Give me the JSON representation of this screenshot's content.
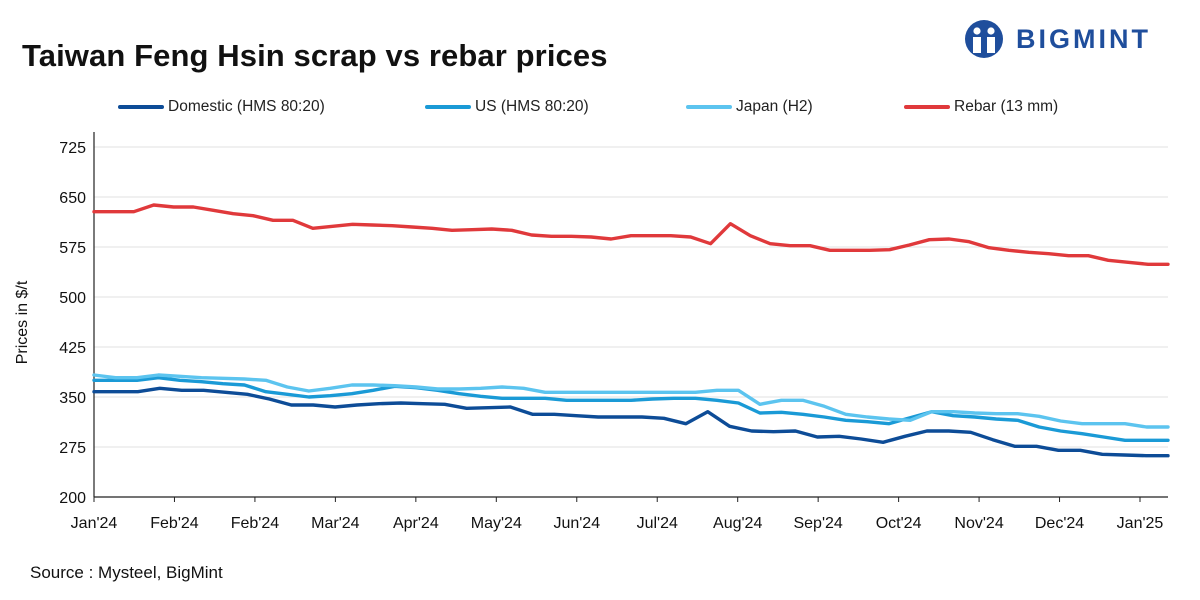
{
  "header": {
    "title": "Taiwan Feng Hsin scrap vs rebar prices",
    "logo_text": "BIGMINT",
    "logo_color": "#1f4e9c"
  },
  "legend": {
    "items": [
      {
        "label": "Domestic (HMS 80:20)",
        "color": "#0d4c97"
      },
      {
        "label": "US (HMS 80:20)",
        "color": "#1a9ad6"
      },
      {
        "label": "Japan (H2)",
        "color": "#5cc4ef"
      },
      {
        "label": "Rebar (13 mm)",
        "color": "#e0393b"
      }
    ]
  },
  "footer": {
    "source": "Source : Mysteel, BigMint"
  },
  "chart_data": {
    "type": "line",
    "title": "Taiwan Feng Hsin scrap vs rebar prices",
    "xlabel": "",
    "ylabel": "Prices in $/t",
    "ylim": [
      200,
      750
    ],
    "yticks": [
      200,
      275,
      350,
      425,
      500,
      575,
      650,
      725
    ],
    "x_tick_labels": [
      "Jan'24",
      "Feb'24",
      "Feb'24",
      "Mar'24",
      "Apr'24",
      "May'24",
      "Jun'24",
      "Jul'24",
      "Aug'24",
      "Sep'24",
      "Oct'24",
      "Nov'24",
      "Dec'24",
      "Jan'25"
    ],
    "grid": "horizontal",
    "legend_position": "top",
    "series": [
      {
        "name": "Domestic (HMS 80:20)",
        "color": "#0d4c97",
        "values": [
          358,
          358,
          358,
          363,
          360,
          360,
          357,
          354,
          347,
          338,
          338,
          335,
          338,
          340,
          341,
          340,
          339,
          333,
          334,
          335,
          324,
          324,
          322,
          320,
          320,
          320,
          318,
          310,
          328,
          306,
          299,
          298,
          299,
          290,
          291,
          287,
          282,
          291,
          299,
          299,
          297,
          286,
          276,
          276,
          270,
          270,
          264,
          263,
          262,
          262
        ]
      },
      {
        "name": "US (HMS 80:20)",
        "color": "#1a9ad6",
        "values": [
          375,
          375,
          375,
          379,
          375,
          373,
          370,
          368,
          358,
          354,
          350,
          352,
          355,
          360,
          366,
          364,
          360,
          355,
          351,
          348,
          348,
          348,
          345,
          345,
          345,
          345,
          347,
          348,
          348,
          345,
          341,
          326,
          327,
          324,
          320,
          315,
          313,
          310,
          319,
          328,
          322,
          320,
          317,
          315,
          305,
          299,
          295,
          290,
          285,
          285,
          285
        ]
      },
      {
        "name": "Japan (H2)",
        "color": "#5cc4ef",
        "values": [
          383,
          379,
          379,
          383,
          381,
          379,
          378,
          377,
          375,
          365,
          359,
          363,
          368,
          368,
          367,
          365,
          362,
          362,
          363,
          365,
          363,
          357,
          357,
          357,
          357,
          357,
          357,
          357,
          357,
          360,
          360,
          339,
          345,
          345,
          336,
          324,
          320,
          317,
          315,
          328,
          328,
          326,
          325,
          325,
          321,
          314,
          310,
          310,
          310,
          305,
          305
        ]
      },
      {
        "name": "Rebar (13 mm)",
        "color": "#e0393b",
        "values": [
          628,
          628,
          628,
          638,
          635,
          635,
          630,
          625,
          622,
          615,
          615,
          603,
          606,
          609,
          608,
          607,
          605,
          603,
          600,
          601,
          602,
          600,
          593,
          591,
          591,
          590,
          587,
          592,
          592,
          592,
          590,
          580,
          610,
          592,
          580,
          577,
          577,
          570,
          570,
          570,
          571,
          578,
          586,
          587,
          583,
          574,
          570,
          567,
          565,
          562,
          562,
          555,
          552,
          549,
          549
        ]
      }
    ]
  }
}
